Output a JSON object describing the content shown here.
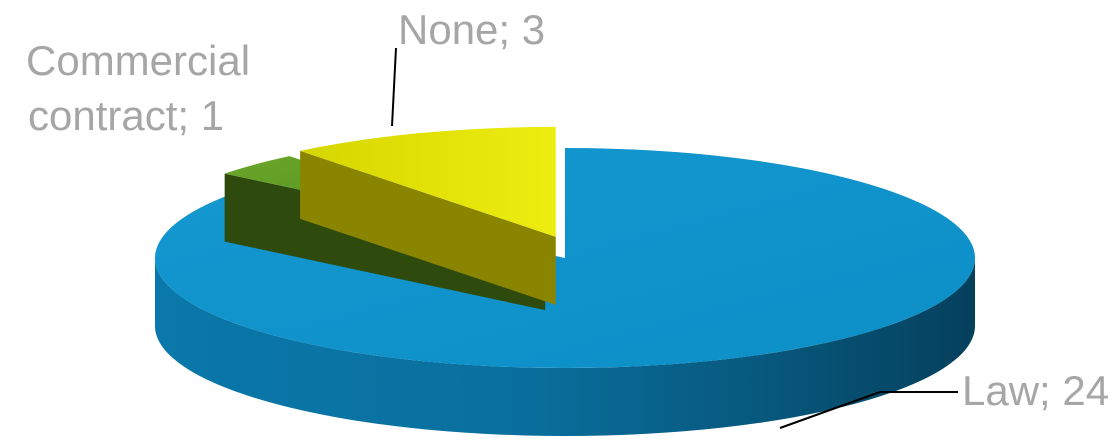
{
  "chart_data": {
    "type": "pie",
    "style": "3d-exploded",
    "slices": [
      {
        "label": "Law",
        "value": 24,
        "data_label": "Law; 24",
        "color": "#0d9bd7"
      },
      {
        "label": "Commercial contract",
        "value": 1,
        "data_label_line1": "Commercial",
        "data_label_line2": "contract; 1",
        "color": "#5e9b1f"
      },
      {
        "label": "None",
        "value": 3,
        "data_label": "None; 3",
        "color": "#dede00"
      }
    ],
    "label_color": "#a6a6a6",
    "legend": "none"
  }
}
